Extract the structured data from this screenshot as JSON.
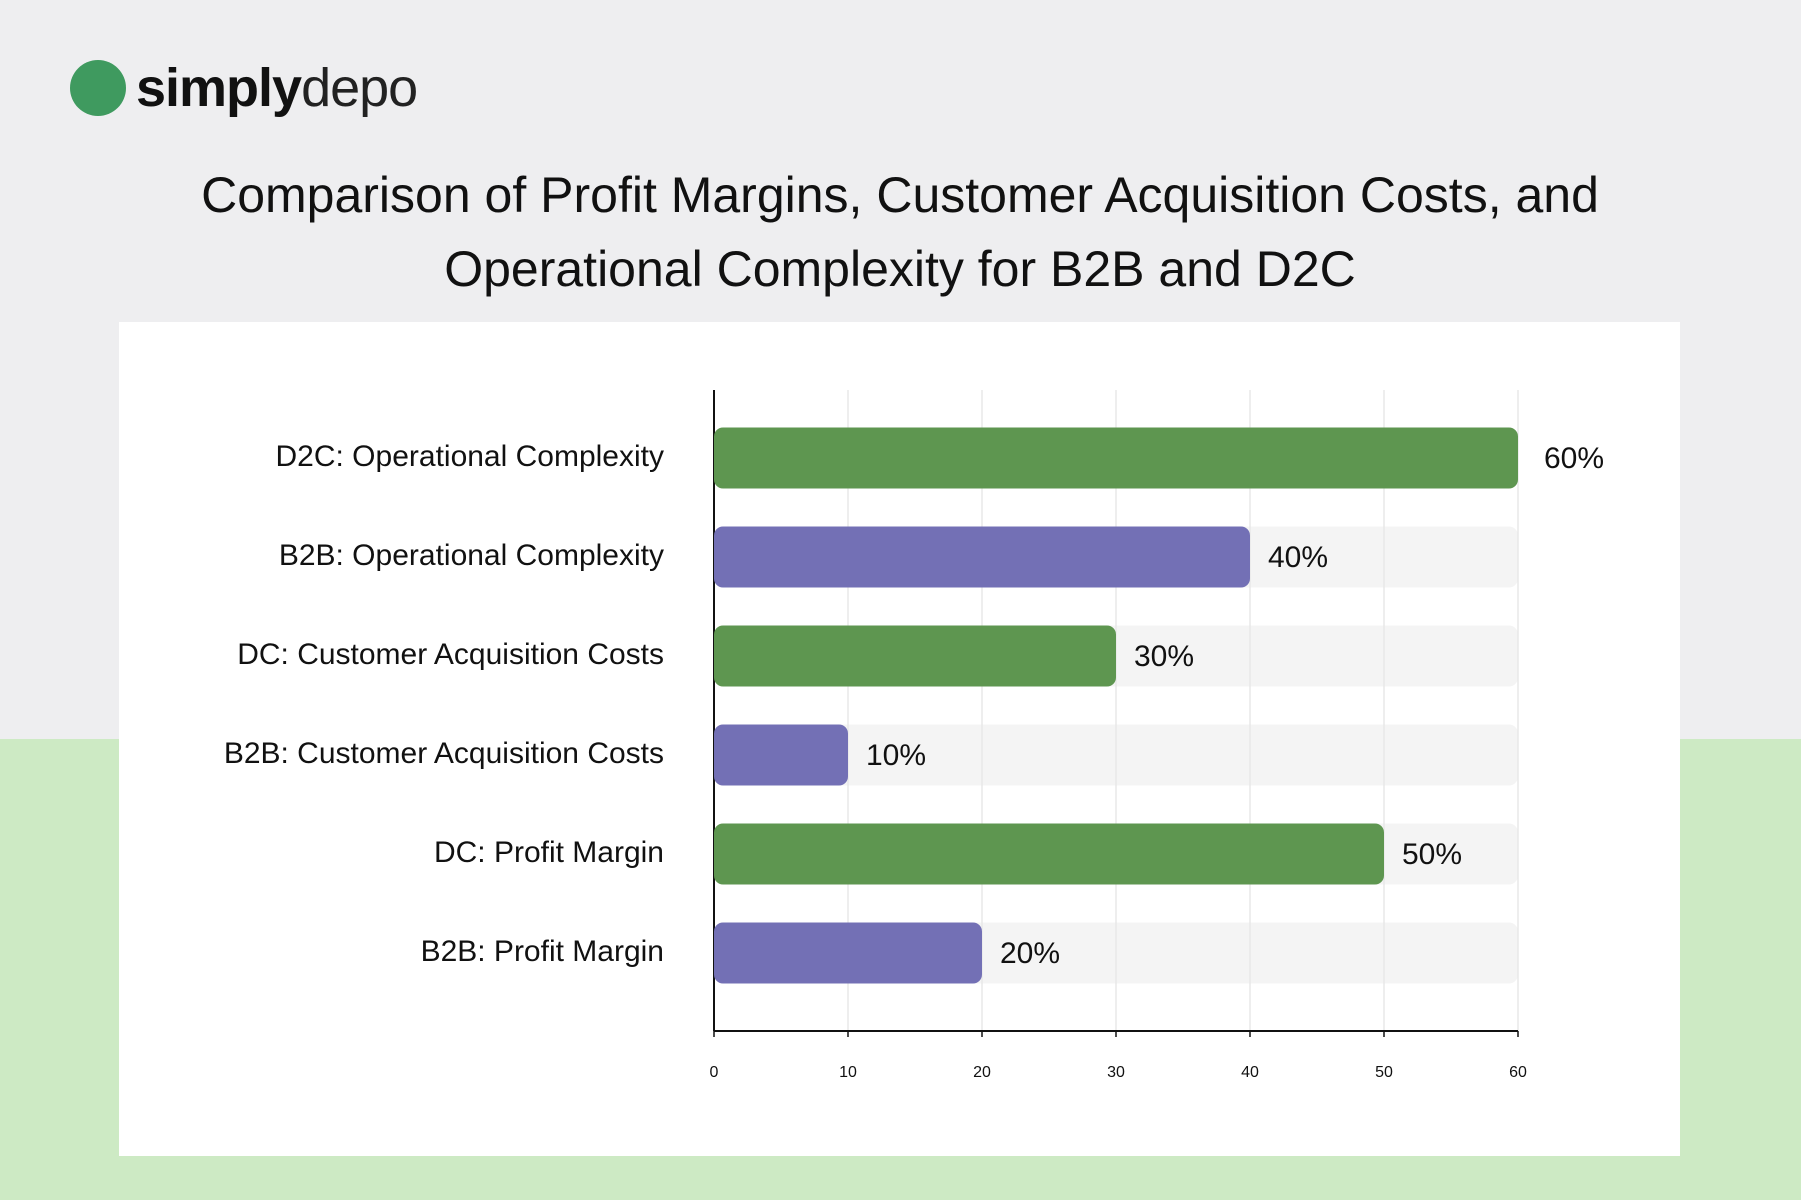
{
  "logo": {
    "bold": "simply",
    "light": "depo"
  },
  "chart_data": {
    "type": "bar",
    "orientation": "horizontal",
    "title": "Comparison of Profit Margins, Customer Acquisition Costs, and Operational Complexity for B2B and D2C",
    "categories": [
      "D2C: Operational Complexity",
      "B2B: Operational Complexity",
      "DC: Customer Acquisition Costs",
      "B2B: Customer Acquisition Costs",
      "DC: Profit Margin",
      "B2B: Profit Margin"
    ],
    "values": [
      60,
      40,
      30,
      10,
      50,
      20
    ],
    "value_labels": [
      "60%",
      "40%",
      "30%",
      "10%",
      "50%",
      "20%"
    ],
    "colors": [
      "#5e9650",
      "#7370b5",
      "#5e9650",
      "#7370b5",
      "#5e9650",
      "#7370b5"
    ],
    "xlim": [
      0,
      60
    ],
    "xticks": [
      0,
      10,
      20,
      30,
      40,
      50,
      60
    ],
    "grid": true
  }
}
